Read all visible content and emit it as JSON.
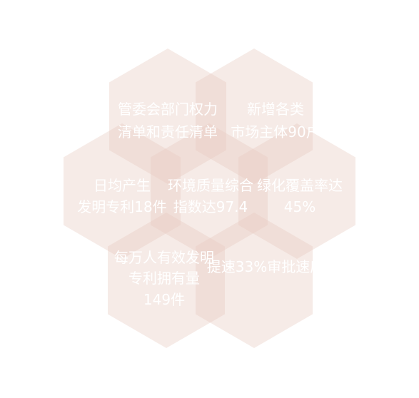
{
  "diagram": {
    "hex_color": "#e8cbbf",
    "text_color": "#ffffff",
    "hexagons": [
      {
        "id": "top-left",
        "lines": [
          "管委会部门权力",
          "清单和责任清单"
        ]
      },
      {
        "id": "top-right",
        "lines": [
          "新增各类",
          "市场主体90户"
        ]
      },
      {
        "id": "mid-left",
        "lines": [
          "日均产生",
          "发明专利18件"
        ]
      },
      {
        "id": "center",
        "lines": [
          "环境质量综合",
          "指数达97.4"
        ]
      },
      {
        "id": "mid-right",
        "lines": [
          "绿化覆盖率达",
          "45%"
        ]
      },
      {
        "id": "bottom-left",
        "lines": [
          "每万人有效发明",
          "专利拥有量",
          "149件"
        ]
      },
      {
        "id": "bottom-right",
        "lines": [
          "提速33%审批速度"
        ]
      }
    ]
  }
}
